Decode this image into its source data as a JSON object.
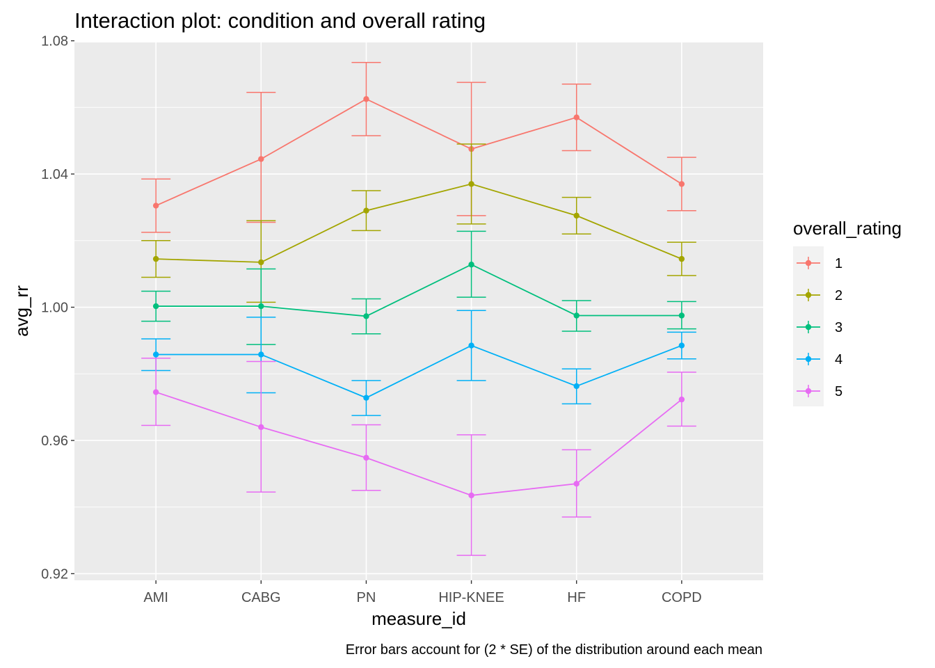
{
  "chart_data": {
    "type": "line",
    "title": "Interaction plot: condition and overall rating",
    "xlabel": "measure_id",
    "ylabel": "avg_rr",
    "caption": "Error bars account for (2 * SE) of the distribution around each mean",
    "categories": [
      "AMI",
      "CABG",
      "PN",
      "HIP-KNEE",
      "HF",
      "COPD"
    ],
    "ylim": [
      0.918,
      1.0795
    ],
    "yticks": [
      0.92,
      0.96,
      1.0,
      1.04,
      1.08
    ],
    "ytick_labels": [
      "0.92",
      "0.96",
      "1.00",
      "1.04",
      "1.08"
    ],
    "grid": true,
    "legend": {
      "title": "overall_rating",
      "position": "right"
    },
    "series": [
      {
        "name": "1",
        "color": "#F8766D",
        "values": [
          1.0305,
          1.0445,
          1.0625,
          1.0475,
          1.057,
          1.037
        ],
        "upper": [
          1.0385,
          1.0645,
          1.0735,
          1.0675,
          1.067,
          1.045
        ],
        "lower": [
          1.0225,
          1.0255,
          1.0515,
          1.0275,
          1.047,
          1.029
        ]
      },
      {
        "name": "2",
        "color": "#A3A500",
        "values": [
          1.0145,
          1.0135,
          1.029,
          1.037,
          1.0275,
          1.0145
        ],
        "upper": [
          1.02,
          1.026,
          1.035,
          1.049,
          1.033,
          1.0195
        ],
        "lower": [
          1.009,
          1.0015,
          1.023,
          1.025,
          1.022,
          1.0095
        ]
      },
      {
        "name": "3",
        "color": "#00BF7D",
        "values": [
          1.0003,
          1.0003,
          0.9973,
          1.0128,
          0.9975,
          0.9975
        ],
        "upper": [
          1.0048,
          1.0115,
          1.0025,
          1.0228,
          1.002,
          1.0017
        ],
        "lower": [
          0.9958,
          0.9888,
          0.992,
          1.003,
          0.9928,
          0.9935
        ]
      },
      {
        "name": "4",
        "color": "#00B0F6",
        "values": [
          0.9858,
          0.9858,
          0.9728,
          0.9885,
          0.9763,
          0.9885
        ],
        "upper": [
          0.9905,
          0.997,
          0.978,
          0.999,
          0.9815,
          0.9925
        ],
        "lower": [
          0.981,
          0.9743,
          0.9675,
          0.978,
          0.971,
          0.9845
        ]
      },
      {
        "name": "5",
        "color": "#E76BF3",
        "values": [
          0.9745,
          0.964,
          0.9548,
          0.9435,
          0.947,
          0.9723
        ],
        "upper": [
          0.9847,
          0.9837,
          0.9647,
          0.9617,
          0.9572,
          0.9805
        ],
        "lower": [
          0.9645,
          0.9445,
          0.945,
          0.9255,
          0.937,
          0.9643
        ]
      }
    ]
  }
}
